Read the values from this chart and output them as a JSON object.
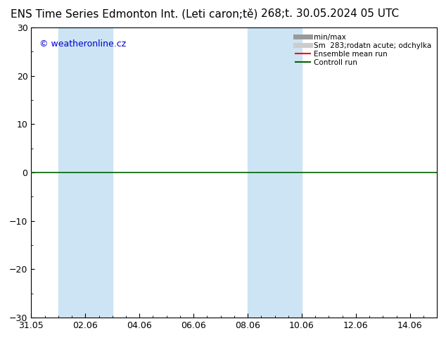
{
  "title_left": "ENS Time Series Edmonton Int. (Leti caron;tě)",
  "title_right": "268;t. 30.05.2024 05 UTC",
  "watermark": "© weatheronline.cz",
  "ylim": [
    -30,
    30
  ],
  "yticks": [
    -30,
    -20,
    -10,
    0,
    10,
    20,
    30
  ],
  "x_tick_labels": [
    "31.05",
    "02.06",
    "04.06",
    "06.06",
    "08.06",
    "10.06",
    "12.06",
    "14.06"
  ],
  "x_tick_positions": [
    0,
    2,
    4,
    6,
    8,
    10,
    12,
    14
  ],
  "xlim": [
    0,
    15
  ],
  "shaded_bands": [
    {
      "x_start": 1.0,
      "x_end": 3.0
    },
    {
      "x_start": 8.0,
      "x_end": 10.0
    }
  ],
  "shaded_color": "#cce4f4",
  "background_color": "#ffffff",
  "plot_bg_color": "#ffffff",
  "zero_line_color": "#006400",
  "border_color": "#000000",
  "legend_entries": [
    {
      "label": "min/max",
      "color": "#999999",
      "lw": 5
    },
    {
      "label": "Sm  283;rodatn acute; odchylka",
      "color": "#cccccc",
      "lw": 5
    },
    {
      "label": "Ensemble mean run",
      "color": "#ff0000",
      "lw": 1.5
    },
    {
      "label": "Controll run",
      "color": "#006400",
      "lw": 1.5
    }
  ],
  "title_fontsize": 11,
  "tick_fontsize": 9,
  "watermark_fontsize": 9,
  "watermark_color": "#0000cc"
}
